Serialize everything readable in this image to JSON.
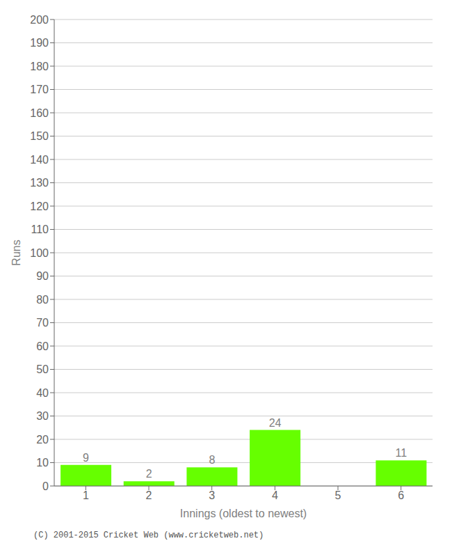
{
  "chart_data": {
    "type": "bar",
    "categories": [
      "1",
      "2",
      "3",
      "4",
      "5",
      "6"
    ],
    "values": [
      9,
      2,
      8,
      24,
      0,
      11
    ],
    "color": "#66ff00",
    "xlabel": "Innings (oldest to newest)",
    "ylabel": "Runs",
    "ylim": [
      0,
      200
    ],
    "yticks": [
      0,
      10,
      20,
      30,
      40,
      50,
      60,
      70,
      80,
      90,
      100,
      110,
      120,
      130,
      140,
      150,
      160,
      170,
      180,
      190,
      200
    ],
    "grid": true,
    "data_labels": true,
    "footer": "(C) 2001-2015 Cricket Web (www.cricketweb.net)"
  }
}
